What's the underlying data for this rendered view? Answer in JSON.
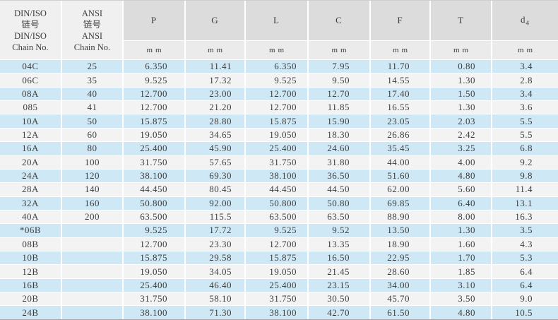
{
  "table": {
    "title": "Chain dimensions table (DIN/ISO and ANSI chain numbers)",
    "columns": [
      {
        "id": "din",
        "header_lines": [
          "DIN/ISO",
          "链号",
          "DIN/ISO",
          "Chain No."
        ],
        "kind": "label"
      },
      {
        "id": "ansi",
        "header_lines": [
          "ANSI",
          "链号",
          "ANSI",
          "Chain No."
        ],
        "kind": "label"
      },
      {
        "id": "p",
        "label": "P",
        "unit": "mm",
        "kind": "numeric"
      },
      {
        "id": "g",
        "label": "G",
        "unit": "mm",
        "kind": "numeric"
      },
      {
        "id": "l",
        "label": "L",
        "unit": "mm",
        "kind": "numeric"
      },
      {
        "id": "c",
        "label": "C",
        "unit": "mm",
        "kind": "numeric"
      },
      {
        "id": "f",
        "label": "F",
        "unit": "mm",
        "kind": "numeric"
      },
      {
        "id": "t",
        "label": "T",
        "unit": "mm",
        "kind": "numeric"
      },
      {
        "id": "d4",
        "label": "d",
        "label_subscript": "4",
        "unit": "mm",
        "kind": "numeric"
      }
    ],
    "rows": [
      [
        "04C",
        "25",
        "6.350",
        "11.41",
        "6.350",
        "7.95",
        "11.70",
        "0.80",
        "3.4"
      ],
      [
        "06C",
        "35",
        "9.525",
        "17.32",
        "9.525",
        "9.50",
        "14.55",
        "1.30",
        "2.8"
      ],
      [
        "08A",
        "40",
        "12.700",
        "23.00",
        "12.700",
        "12.70",
        "17.40",
        "1.50",
        "3.4"
      ],
      [
        "085",
        "41",
        "12.700",
        "21.20",
        "12.700",
        "11.85",
        "16.55",
        "1.30",
        "3.6"
      ],
      [
        "10A",
        "50",
        "15.875",
        "28.80",
        "15.875",
        "15.90",
        "23.05",
        "2.03",
        "5.5"
      ],
      [
        "12A",
        "60",
        "19.050",
        "34.65",
        "19.050",
        "18.30",
        "26.86",
        "2.42",
        "5.5"
      ],
      [
        "16A",
        "80",
        "25.400",
        "45.90",
        "25.400",
        "24.60",
        "35.45",
        "3.25",
        "6.8"
      ],
      [
        "20A",
        "100",
        "31.750",
        "57.65",
        "31.750",
        "31.80",
        "44.00",
        "4.00",
        "9.2"
      ],
      [
        "24A",
        "120",
        "38.100",
        "69.30",
        "38.100",
        "36.50",
        "51.60",
        "4.80",
        "9.8"
      ],
      [
        "28A",
        "140",
        "44.450",
        "80.45",
        "44.450",
        "44.50",
        "62.00",
        "5.60",
        "11.4"
      ],
      [
        "32A",
        "160",
        "50.800",
        "92.00",
        "50.800",
        "50.80",
        "69.85",
        "6.40",
        "13.1"
      ],
      [
        "40A",
        "200",
        "63.500",
        "115.5",
        "63.500",
        "63.50",
        "88.90",
        "8.00",
        "16.3"
      ],
      [
        "*06B",
        "",
        "9.525",
        "17.72",
        "9.525",
        "9.52",
        "13.50",
        "1.30",
        "3.5"
      ],
      [
        "08B",
        "",
        "12.700",
        "23.30",
        "12.700",
        "13.35",
        "18.90",
        "1.60",
        "4.3"
      ],
      [
        "10B",
        "",
        "15.875",
        "29.58",
        "15.875",
        "16.50",
        "22.95",
        "1.70",
        "5.3"
      ],
      [
        "12B",
        "",
        "19.050",
        "34.05",
        "19.050",
        "21.45",
        "28.60",
        "1.85",
        "6.4"
      ],
      [
        "16B",
        "",
        "25.400",
        "46.40",
        "25.400",
        "23.15",
        "34.00",
        "3.10",
        "6.4"
      ],
      [
        "20B",
        "",
        "31.750",
        "58.10",
        "31.750",
        "30.50",
        "45.70",
        "3.50",
        "9.0"
      ],
      [
        "24B",
        "",
        "38.100",
        "71.30",
        "38.100",
        "42.70",
        "61.50",
        "4.80",
        "10.5"
      ]
    ]
  },
  "colors": {
    "header_top_bg": "#dcdcdc",
    "header_unit_bg": "#ebebeb",
    "header_chain_bg": "#f0f0f0",
    "row_alt_blue": "#cfe8f5",
    "row_alt_gray": "#f3f3f3",
    "grid_line": "#ffffff",
    "outer_border_top": "#cfcfcf",
    "outer_border_bottom": "#a5a5a5",
    "text": "#3d3d3d"
  }
}
